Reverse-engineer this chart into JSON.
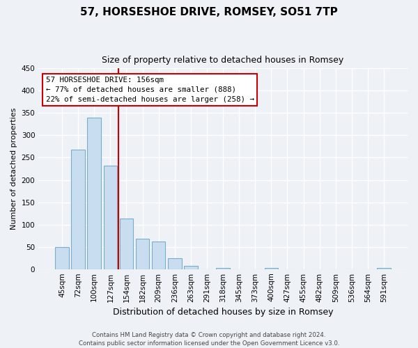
{
  "title": "57, HORSESHOE DRIVE, ROMSEY, SO51 7TP",
  "subtitle": "Size of property relative to detached houses in Romsey",
  "xlabel": "Distribution of detached houses by size in Romsey",
  "ylabel": "Number of detached properties",
  "bins": [
    "45sqm",
    "72sqm",
    "100sqm",
    "127sqm",
    "154sqm",
    "182sqm",
    "209sqm",
    "236sqm",
    "263sqm",
    "291sqm",
    "318sqm",
    "345sqm",
    "373sqm",
    "400sqm",
    "427sqm",
    "455sqm",
    "482sqm",
    "509sqm",
    "536sqm",
    "564sqm",
    "591sqm"
  ],
  "values": [
    50,
    268,
    340,
    232,
    114,
    68,
    62,
    25,
    7,
    0,
    2,
    0,
    0,
    2,
    0,
    0,
    0,
    0,
    0,
    0,
    2
  ],
  "bar_color": "#c8ddef",
  "bar_edge_color": "#7aaec8",
  "vline_color": "#cc0000",
  "annotation_line1": "57 HORSESHOE DRIVE: 156sqm",
  "annotation_line2": "← 77% of detached houses are smaller (888)",
  "annotation_line3": "22% of semi-detached houses are larger (258) →",
  "ylim": [
    0,
    450
  ],
  "yticks": [
    0,
    50,
    100,
    150,
    200,
    250,
    300,
    350,
    400,
    450
  ],
  "footer": "Contains HM Land Registry data © Crown copyright and database right 2024.\nContains public sector information licensed under the Open Government Licence v3.0.",
  "background_color": "#eef2f7",
  "grid_color": "#ffffff",
  "title_fontsize": 11,
  "subtitle_fontsize": 9,
  "ylabel_fontsize": 8,
  "xlabel_fontsize": 9,
  "tick_fontsize": 7.5,
  "footer_fontsize": 6.2
}
